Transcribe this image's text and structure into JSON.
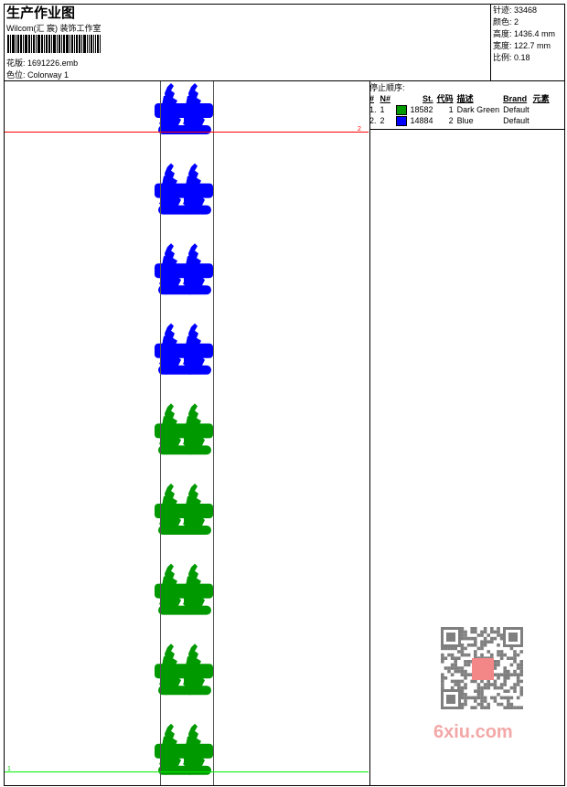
{
  "header": {
    "title": "生产作业图",
    "company": "Wilcom(汇 宸) 装饰工作室",
    "design_label": "花版:",
    "design_value": "1691226.emb",
    "colorway_label": "色位:",
    "colorway_value": "Colorway 1"
  },
  "info": [
    {
      "label": "针迹:",
      "value": "33468"
    },
    {
      "label": "颜色:",
      "value": "2"
    },
    {
      "label": "高度:",
      "value": "1436.4 mm"
    },
    {
      "label": "宽度:",
      "value": "122.7 mm"
    },
    {
      "label": "比例:",
      "value": "0.18"
    }
  ],
  "stop_sequence": {
    "title": "停止顺序:",
    "columns": [
      "#",
      "N#",
      "St.",
      "代码",
      "描述",
      "Brand",
      "元素"
    ],
    "rows": [
      {
        "num": "1.",
        "n": "1",
        "color": "#009900",
        "stitches": "18582",
        "code": "1",
        "desc": "Dark Green",
        "brand": "Default",
        "element": ""
      },
      {
        "num": "2.",
        "n": "2",
        "color": "#0000ff",
        "stitches": "14884",
        "code": "2",
        "desc": "Blue",
        "brand": "Default",
        "element": ""
      }
    ]
  },
  "design": {
    "repeat_colors": [
      "#0000ff",
      "#0000ff",
      "#0000ff",
      "#0000ff",
      "#009900",
      "#009900",
      "#009900",
      "#009900",
      "#009900"
    ],
    "start_marker": "2",
    "end_marker": "1",
    "start_line_color": "#ff0000",
    "end_line_color": "#00ee00"
  },
  "watermark": {
    "text": "6xiu.com",
    "seal": "汉 服 图 设"
  }
}
